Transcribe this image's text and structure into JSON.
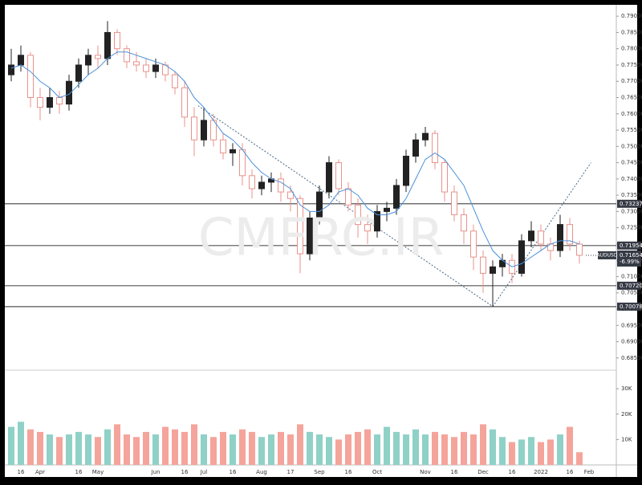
{
  "chart_data": {
    "type": "candlestick",
    "symbol": "AUDUSD",
    "watermark": "CMFRC.IR",
    "categories": [
      null,
      "16",
      null,
      "Apr",
      null,
      null,
      null,
      "16",
      null,
      "May",
      null,
      null,
      null,
      null,
      null,
      "Jun",
      null,
      null,
      "16",
      null,
      "Jul",
      null,
      null,
      "16",
      null,
      null,
      "Aug",
      null,
      null,
      "17",
      null,
      null,
      "Sep",
      null,
      null,
      "16",
      null,
      null,
      "Oct",
      null,
      null,
      null,
      null,
      "Nov",
      null,
      null,
      "16",
      null,
      null,
      "Dec",
      null,
      null,
      "16",
      null,
      null,
      "2022",
      null,
      null,
      "16",
      null,
      "Feb",
      null,
      null
    ],
    "open": [
      0.772,
      0.775,
      0.778,
      0.765,
      0.762,
      0.765,
      0.763,
      0.77,
      0.775,
      0.778,
      0.777,
      0.785,
      0.78,
      0.776,
      0.775,
      0.773,
      0.775,
      0.772,
      0.768,
      0.759,
      0.752,
      0.758,
      0.752,
      0.748,
      0.749,
      0.741,
      0.737,
      0.739,
      0.74,
      0.736,
      0.734,
      0.717,
      0.728,
      0.736,
      0.745,
      0.737,
      0.732,
      0.726,
      0.724,
      0.73,
      0.731,
      0.738,
      0.747,
      0.752,
      0.754,
      0.745,
      0.736,
      0.729,
      0.724,
      0.716,
      0.711,
      0.713,
      0.715,
      0.711,
      0.721,
      0.724,
      0.72,
      0.718,
      0.726,
      0.72,
      null,
      null,
      null
    ],
    "high": [
      0.78,
      0.781,
      0.779,
      0.768,
      0.768,
      0.767,
      0.772,
      0.777,
      0.78,
      0.781,
      0.7885,
      0.786,
      0.781,
      0.779,
      0.777,
      0.777,
      0.776,
      0.773,
      0.77,
      0.762,
      0.762,
      0.76,
      0.754,
      0.751,
      0.751,
      0.743,
      0.741,
      0.742,
      0.742,
      0.738,
      0.735,
      0.73,
      0.738,
      0.747,
      0.746,
      0.739,
      0.734,
      0.729,
      0.732,
      0.733,
      0.74,
      0.749,
      0.754,
      0.756,
      0.755,
      0.746,
      0.738,
      0.731,
      0.726,
      0.718,
      0.715,
      0.717,
      0.717,
      0.723,
      0.727,
      0.726,
      0.722,
      0.729,
      0.728,
      0.721,
      null,
      null,
      null
    ],
    "low": [
      0.77,
      0.773,
      0.762,
      0.758,
      0.76,
      0.76,
      0.761,
      0.768,
      0.772,
      0.774,
      0.775,
      0.778,
      0.774,
      0.773,
      0.771,
      0.771,
      0.77,
      0.766,
      0.756,
      0.747,
      0.75,
      0.75,
      0.746,
      0.744,
      0.738,
      0.734,
      0.735,
      0.736,
      0.733,
      0.73,
      0.711,
      0.715,
      0.726,
      0.734,
      0.735,
      0.73,
      0.722,
      0.72,
      0.722,
      0.727,
      0.729,
      0.736,
      0.745,
      0.75,
      0.743,
      0.733,
      0.727,
      0.72,
      0.712,
      0.705,
      0.7008,
      0.71,
      0.708,
      0.71,
      0.719,
      0.718,
      0.715,
      0.716,
      0.718,
      0.714,
      null,
      null,
      null
    ],
    "close": [
      0.775,
      0.778,
      0.765,
      0.762,
      0.765,
      0.763,
      0.77,
      0.775,
      0.778,
      0.777,
      0.785,
      0.78,
      0.776,
      0.775,
      0.773,
      0.775,
      0.772,
      0.768,
      0.759,
      0.752,
      0.758,
      0.752,
      0.748,
      0.749,
      0.741,
      0.737,
      0.739,
      0.74,
      0.736,
      0.734,
      0.717,
      0.728,
      0.736,
      0.745,
      0.737,
      0.732,
      0.726,
      0.724,
      0.73,
      0.731,
      0.738,
      0.747,
      0.752,
      0.754,
      0.745,
      0.736,
      0.729,
      0.724,
      0.716,
      0.711,
      0.713,
      0.715,
      0.711,
      0.721,
      0.724,
      0.72,
      0.718,
      0.726,
      0.72,
      0.71654,
      null,
      null,
      null
    ],
    "volume": [
      15000,
      17000,
      14000,
      13000,
      12000,
      11000,
      12000,
      13000,
      12000,
      11000,
      14000,
      16000,
      12000,
      11000,
      13000,
      12000,
      15000,
      14000,
      13000,
      16000,
      12000,
      11000,
      13000,
      12000,
      14000,
      13000,
      11000,
      12000,
      13000,
      12000,
      16000,
      13000,
      12000,
      11000,
      10000,
      12000,
      13000,
      14000,
      12000,
      15000,
      13000,
      12000,
      14000,
      12000,
      13000,
      12000,
      11000,
      13000,
      12000,
      16000,
      14000,
      11000,
      9000,
      10000,
      11000,
      9000,
      10000,
      12000,
      15000,
      5000,
      null,
      null,
      null
    ],
    "ma": {
      "color": "#4a90d9",
      "values": [
        0.774,
        0.775,
        0.773,
        0.77,
        0.768,
        0.765,
        0.766,
        0.769,
        0.772,
        0.774,
        0.777,
        0.779,
        0.779,
        0.778,
        0.777,
        0.776,
        0.775,
        0.773,
        0.77,
        0.765,
        0.762,
        0.758,
        0.754,
        0.752,
        0.749,
        0.745,
        0.742,
        0.74,
        0.739,
        0.737,
        0.732,
        0.73,
        0.73,
        0.732,
        0.736,
        0.737,
        0.735,
        0.731,
        0.729,
        0.729,
        0.73,
        0.734,
        0.74,
        0.746,
        0.748,
        0.746,
        0.742,
        0.738,
        0.731,
        0.724,
        0.718,
        0.715,
        0.713,
        0.714,
        0.716,
        0.718,
        0.72,
        0.721,
        0.721,
        0.72,
        null,
        null,
        null
      ]
    },
    "up_color": "#222222",
    "down_color": "#e8938b",
    "volume_up_color": "#8fd1c7",
    "volume_down_color": "#f5a49b",
    "ylim": [
      0.6815,
      0.793
    ],
    "yticks": [
      {
        "value": 0.685,
        "label": "0.68500"
      },
      {
        "value": 0.69,
        "label": "0.69000"
      },
      {
        "value": 0.695,
        "label": "0.69500"
      },
      {
        "value": 0.7,
        "label": "0.70000"
      },
      {
        "value": 0.705,
        "label": "0.70500"
      },
      {
        "value": 0.71,
        "label": "0.71000"
      },
      {
        "value": 0.715,
        "label": "0.71500"
      },
      {
        "value": 0.72,
        "label": "0.72000"
      },
      {
        "value": 0.725,
        "label": "0.72500"
      },
      {
        "value": 0.73,
        "label": "0.73000"
      },
      {
        "value": 0.735,
        "label": "0.73500"
      },
      {
        "value": 0.74,
        "label": "0.74000"
      },
      {
        "value": 0.745,
        "label": "0.74500"
      },
      {
        "value": 0.75,
        "label": "0.75000"
      },
      {
        "value": 0.755,
        "label": "0.75500"
      },
      {
        "value": 0.76,
        "label": "0.76000"
      },
      {
        "value": 0.765,
        "label": "0.76500"
      },
      {
        "value": 0.77,
        "label": "0.77000"
      },
      {
        "value": 0.775,
        "label": "0.77500"
      },
      {
        "value": 0.78,
        "label": "0.78000"
      },
      {
        "value": 0.785,
        "label": "0.78500"
      },
      {
        "value": 0.79,
        "label": "0.79000"
      }
    ],
    "volume_ylim": [
      0,
      37000
    ],
    "volume_yticks": [
      {
        "value": 10000,
        "label": "10K"
      },
      {
        "value": 20000,
        "label": "20K"
      },
      {
        "value": 30000,
        "label": "30K"
      }
    ],
    "levels": [
      {
        "value": 0.73237,
        "label": "0.73237"
      },
      {
        "value": 0.71954,
        "label": "0.71954"
      },
      {
        "value": 0.7072,
        "label": "0.70720"
      },
      {
        "value": 0.70078,
        "label": "0.70078"
      }
    ],
    "last_price": {
      "value": 0.71654,
      "label": "0.71654"
    },
    "change_label": "-6.99%",
    "trendlines": [
      {
        "x": [
          19.4,
          50
        ],
        "y": [
          0.7625,
          0.7008
        ]
      },
      {
        "x": [
          50,
          60.2
        ],
        "y": [
          0.7008,
          0.745
        ]
      }
    ]
  }
}
